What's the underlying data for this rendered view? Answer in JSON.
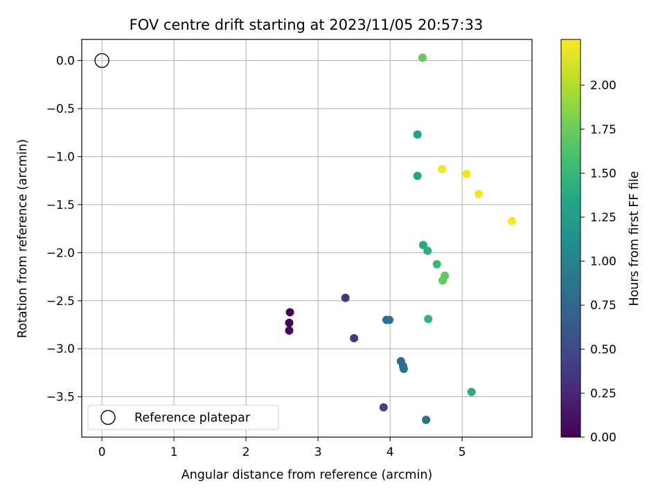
{
  "chart_data": {
    "type": "scatter",
    "title": "FOV centre drift starting at 2023/11/05 20:57:33",
    "xlabel": "Angular distance from reference (arcmin)",
    "ylabel": "Rotation from reference (arcmin)",
    "xlim": [
      -0.28,
      5.97
    ],
    "ylim": [
      -3.92,
      0.22
    ],
    "x_ticks": [
      0,
      1,
      2,
      3,
      4,
      5
    ],
    "y_ticks": [
      0.0,
      -0.5,
      -1.0,
      -1.5,
      -2.0,
      -2.5,
      -3.0,
      -3.5
    ],
    "x_tick_labels": [
      "0",
      "1",
      "2",
      "3",
      "4",
      "5"
    ],
    "y_tick_labels": [
      "0.0",
      "−0.5",
      "−1.0",
      "−1.5",
      "−2.0",
      "−2.5",
      "−3.0",
      "−3.5"
    ],
    "grid": true,
    "colormap": "viridis",
    "colorbar": {
      "label": "Hours from first FF file",
      "range": [
        0.0,
        2.26
      ],
      "ticks": [
        0.0,
        0.25,
        0.5,
        0.75,
        1.0,
        1.25,
        1.5,
        1.75,
        2.0
      ],
      "tick_labels": [
        "0.00",
        "0.25",
        "0.50",
        "0.75",
        "1.00",
        "1.25",
        "1.50",
        "1.75",
        "2.00"
      ]
    },
    "reference_point": {
      "x": 0.0,
      "y": 0.0,
      "label": "Reference platepar"
    },
    "legend": {
      "placement": "lower-left",
      "entries": [
        "Reference platepar"
      ]
    },
    "points": [
      {
        "x": 2.61,
        "y": -2.62,
        "hours": 0.03
      },
      {
        "x": 2.6,
        "y": -2.73,
        "hours": 0.0
      },
      {
        "x": 2.6,
        "y": -2.81,
        "hours": 0.02
      },
      {
        "x": 3.38,
        "y": -2.47,
        "hours": 0.35
      },
      {
        "x": 3.5,
        "y": -2.89,
        "hours": 0.38
      },
      {
        "x": 3.91,
        "y": -3.61,
        "hours": 0.45
      },
      {
        "x": 3.95,
        "y": -2.7,
        "hours": 0.8
      },
      {
        "x": 3.99,
        "y": -2.7,
        "hours": 0.85
      },
      {
        "x": 4.15,
        "y": -3.13,
        "hours": 0.78
      },
      {
        "x": 4.18,
        "y": -3.18,
        "hours": 0.8
      },
      {
        "x": 4.19,
        "y": -3.21,
        "hours": 0.83
      },
      {
        "x": 4.5,
        "y": -3.74,
        "hours": 0.88
      },
      {
        "x": 4.53,
        "y": -2.69,
        "hours": 1.45
      },
      {
        "x": 5.13,
        "y": -3.45,
        "hours": 1.4
      },
      {
        "x": 4.38,
        "y": -0.77,
        "hours": 1.3
      },
      {
        "x": 4.38,
        "y": -1.2,
        "hours": 1.35
      },
      {
        "x": 4.46,
        "y": -1.92,
        "hours": 1.38
      },
      {
        "x": 4.52,
        "y": -1.98,
        "hours": 1.42
      },
      {
        "x": 4.65,
        "y": -2.12,
        "hours": 1.5
      },
      {
        "x": 4.73,
        "y": -2.29,
        "hours": 1.72
      },
      {
        "x": 4.76,
        "y": -2.24,
        "hours": 1.7
      },
      {
        "x": 4.45,
        "y": 0.03,
        "hours": 1.72
      },
      {
        "x": 4.72,
        "y": -1.13,
        "hours": 2.22
      },
      {
        "x": 5.06,
        "y": -1.18,
        "hours": 2.2
      },
      {
        "x": 5.23,
        "y": -1.39,
        "hours": 2.22
      },
      {
        "x": 5.69,
        "y": -1.67,
        "hours": 2.24
      }
    ]
  }
}
